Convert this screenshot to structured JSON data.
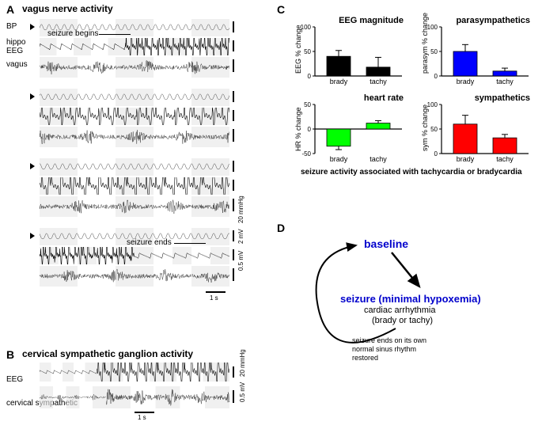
{
  "panelA": {
    "label": "A",
    "title": "vagus nerve activity",
    "rows": [
      {
        "label": "BP",
        "annotation": null
      },
      {
        "label": "hippo\nEEG",
        "annotation": "seizure begins"
      },
      {
        "label": "vagus",
        "annotation": null
      }
    ],
    "seizure_ends_label": "seizure ends",
    "scales": {
      "bp": "20 mmHg",
      "eeg": "2 mV",
      "vagus": "0.5 mV",
      "time": "1 s"
    },
    "trace_width": 240,
    "trace_height": 20,
    "trace_x": 50,
    "block_gap": 8,
    "colors": {
      "bp": "#555",
      "eeg": "#000",
      "vagus": "#111"
    }
  },
  "panelB": {
    "label": "B",
    "title": "cervical sympathetic ganglion activity",
    "rows": [
      {
        "label": "EEG"
      },
      {
        "label": "cervical sympathetic"
      }
    ],
    "scales": {
      "eeg": "20 mmHg",
      "symp": "0.5 mV",
      "time": "1 s"
    }
  },
  "panelC": {
    "label": "C",
    "charts": [
      {
        "title": "EEG magnitude",
        "ylabel": "EEG % change",
        "ylim": [
          0,
          100
        ],
        "ytick": [
          0,
          50,
          100
        ],
        "categories": [
          "brady",
          "tachy"
        ],
        "values": [
          40,
          18
        ],
        "errors": [
          12,
          20
        ],
        "bar_color": "#000000"
      },
      {
        "title": "parasympathetics",
        "ylabel": "parasym % change",
        "ylim": [
          0,
          100
        ],
        "ytick": [
          0,
          50,
          100
        ],
        "categories": [
          "brady",
          "tachy"
        ],
        "values": [
          50,
          10
        ],
        "errors": [
          14,
          6
        ],
        "bar_color": "#0000ff"
      },
      {
        "title": "heart rate",
        "ylabel": "HR % change",
        "ylim": [
          -50,
          50
        ],
        "ytick": [
          -50,
          0,
          50
        ],
        "categories": [
          "brady",
          "tachy"
        ],
        "values": [
          -35,
          12
        ],
        "errors": [
          7,
          5
        ],
        "bar_color": "#00ff00"
      },
      {
        "title": "sympathetics",
        "ylabel": "sym % change",
        "ylim": [
          0,
          100
        ],
        "ytick": [
          0,
          50,
          100
        ],
        "categories": [
          "brady",
          "tachy"
        ],
        "values": [
          60,
          32
        ],
        "errors": [
          18,
          7
        ],
        "bar_color": "#ff0000"
      }
    ],
    "xaxis_caption": "seizure activity associated with tachycardia or bradycardia"
  },
  "panelD": {
    "label": "D",
    "baseline": "baseline",
    "seizure": "seizure (minimal hypoxemia)",
    "sub1": "cardiac arrhythmia",
    "sub2": "(brady or tachy)",
    "loop1": "seizure ends on its own",
    "loop2": "normal sinus rhythm",
    "loop3": "restored",
    "accent_color": "#0000cc"
  }
}
